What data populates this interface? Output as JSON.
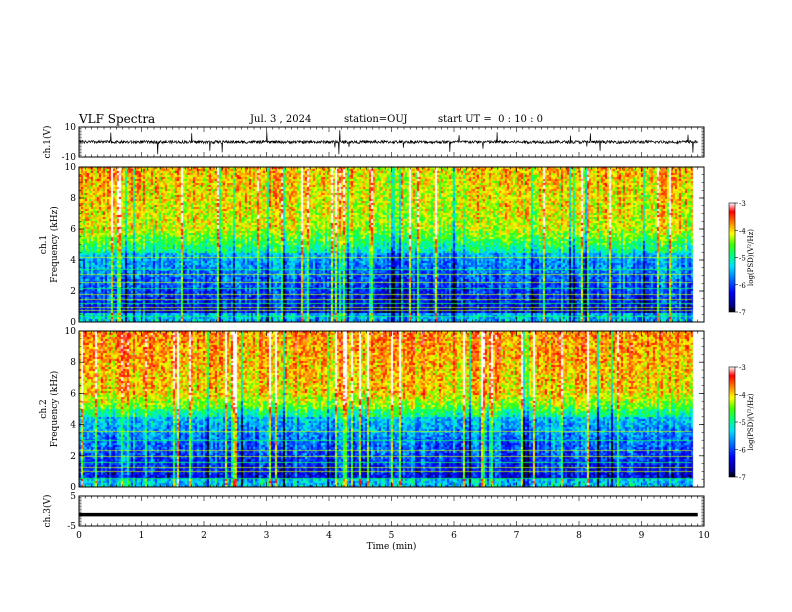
{
  "header": {
    "title": "VLF Spectra",
    "date": "Jul. 3 , 2024",
    "station": "station=OUJ",
    "start_ut": "start UT =  0 : 10 : 0"
  },
  "chart_data": [
    {
      "type": "line",
      "panel": "ch1-waveform",
      "ylabel": "ch.1(V)",
      "ylim": [
        -10,
        10
      ],
      "y_tick_labels": [
        "10",
        "-10"
      ],
      "xlim": [
        0,
        10
      ],
      "series": [
        {
          "values_description_free": true,
          "mean": 0,
          "base_amplitude": 1.0,
          "spike_max": 10
        }
      ]
    },
    {
      "type": "heatmap",
      "panel": "ch1-spectrogram",
      "ylabel": "Frequency (kHz)",
      "channel_label": "ch.1",
      "ylim": [
        0,
        10
      ],
      "y_tick_labels": [
        "0",
        "2",
        "4",
        "6",
        "8",
        "10"
      ],
      "xlim": [
        0,
        10
      ],
      "data_end_min": 9.8,
      "colorbar": {
        "label": "log(PSD)(V²/Hz)",
        "range": [
          -7,
          -3
        ],
        "tick_labels": [
          "-3",
          "-4",
          "-5",
          "-6",
          "-7"
        ]
      },
      "horizontal_lines_khz": [
        0.4,
        0.8,
        1.0,
        1.2,
        1.5,
        1.8,
        2.2,
        2.6,
        3.1,
        3.4,
        4.2
      ]
    },
    {
      "type": "heatmap",
      "panel": "ch2-spectrogram",
      "ylabel": "Frequency (kHz)",
      "channel_label": "ch.2",
      "ylim": [
        0,
        10
      ],
      "y_tick_labels": [
        "0",
        "2",
        "4",
        "6",
        "8",
        "10"
      ],
      "xlim": [
        0,
        10
      ],
      "data_end_min": 9.8,
      "colorbar": {
        "label": "log(PSD)(V²/Hz)",
        "range": [
          -7,
          -3
        ],
        "tick_labels": [
          "-3",
          "-4",
          "-5",
          "-6",
          "-7"
        ]
      },
      "horizontal_lines_khz": [
        0.6,
        1.0,
        1.3,
        1.6,
        2.0,
        2.4,
        3.0,
        3.6
      ]
    },
    {
      "type": "line",
      "panel": "ch3-waveform",
      "ylabel": "ch.3(V)",
      "ylim": [
        -5,
        5
      ],
      "y_tick_labels": [
        "5",
        "-5"
      ],
      "xlim": [
        0,
        10
      ],
      "series": [
        {
          "constant": -1.2
        }
      ]
    }
  ],
  "xaxis": {
    "label": "Time (min)",
    "tick_labels": [
      "0",
      "1",
      "2",
      "3",
      "4",
      "5",
      "6",
      "7",
      "8",
      "9",
      "10"
    ]
  },
  "colors": {
    "frame": "#000000",
    "background": "#ffffff"
  }
}
